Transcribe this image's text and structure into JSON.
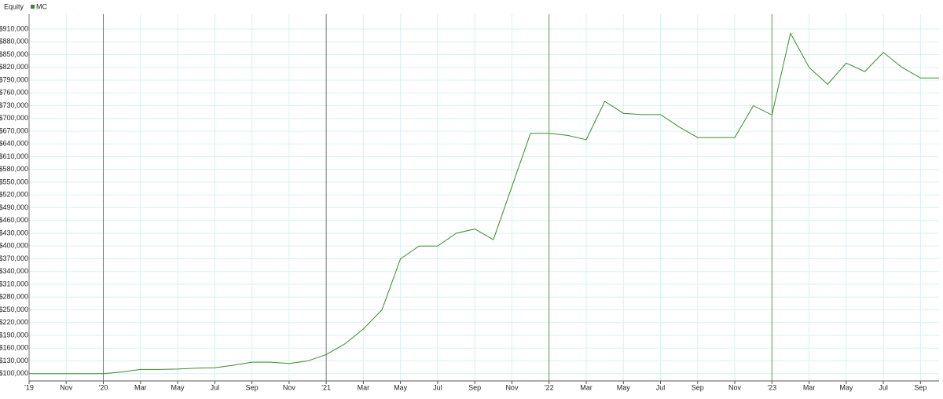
{
  "chart_data": {
    "type": "line",
    "title": "Equity",
    "x": [
      "2019-09",
      "2019-10",
      "2019-11",
      "2019-12",
      "2020-01",
      "2020-02",
      "2020-03",
      "2020-04",
      "2020-05",
      "2020-06",
      "2020-07",
      "2020-08",
      "2020-09",
      "2020-10",
      "2020-11",
      "2020-12",
      "2021-01",
      "2021-02",
      "2021-03",
      "2021-04",
      "2021-05",
      "2021-06",
      "2021-07",
      "2021-08",
      "2021-09",
      "2021-10",
      "2021-11",
      "2021-12",
      "2022-01",
      "2022-02",
      "2022-03",
      "2022-04",
      "2022-05",
      "2022-06",
      "2022-07",
      "2022-08",
      "2022-09",
      "2022-10",
      "2022-11",
      "2022-12",
      "2023-01",
      "2023-02",
      "2023-03",
      "2023-04",
      "2023-05",
      "2023-06",
      "2023-07",
      "2023-08",
      "2023-09",
      "2023-10"
    ],
    "series": [
      {
        "name": "MC",
        "color": "#3a8a2a",
        "values": [
          100000,
          100000,
          100000,
          100000,
          100000,
          104000,
          110000,
          110000,
          111000,
          113000,
          114000,
          120000,
          127000,
          127000,
          124000,
          130000,
          145000,
          170000,
          205000,
          250000,
          370000,
          400000,
          400000,
          430000,
          440000,
          415000,
          540000,
          665000,
          665000,
          660000,
          650000,
          740000,
          712000,
          709000,
          709000,
          680000,
          655000,
          655000,
          655000,
          730000,
          708000,
          900000,
          820000,
          780000,
          830000,
          810000,
          855000,
          820000,
          795000,
          795000
        ]
      }
    ],
    "xlim": [
      "2019-09",
      "2023-10"
    ],
    "xticks": [
      {
        "value": "2019-09",
        "label": "'19"
      },
      {
        "value": "2019-11",
        "label": "Nov"
      },
      {
        "value": "2020-01",
        "label": "'20"
      },
      {
        "value": "2020-03",
        "label": "Mar"
      },
      {
        "value": "2020-05",
        "label": "May"
      },
      {
        "value": "2020-07",
        "label": "Jul"
      },
      {
        "value": "2020-09",
        "label": "Sep"
      },
      {
        "value": "2020-11",
        "label": "Nov"
      },
      {
        "value": "2021-01",
        "label": "'21"
      },
      {
        "value": "2021-03",
        "label": "Mar"
      },
      {
        "value": "2021-05",
        "label": "May"
      },
      {
        "value": "2021-07",
        "label": "Jul"
      },
      {
        "value": "2021-09",
        "label": "Sep"
      },
      {
        "value": "2021-11",
        "label": "Nov"
      },
      {
        "value": "2022-01",
        "label": "'22"
      },
      {
        "value": "2022-03",
        "label": "Mar"
      },
      {
        "value": "2022-05",
        "label": "May"
      },
      {
        "value": "2022-07",
        "label": "Jul"
      },
      {
        "value": "2022-09",
        "label": "Sep"
      },
      {
        "value": "2022-11",
        "label": "Nov"
      },
      {
        "value": "2023-01",
        "label": "'23"
      },
      {
        "value": "2023-03",
        "label": "Mar"
      },
      {
        "value": "2023-05",
        "label": "May"
      },
      {
        "value": "2023-07",
        "label": "Jul"
      },
      {
        "value": "2023-09",
        "label": "Sep"
      }
    ],
    "ylim": [
      83000,
      945000
    ],
    "yticks": [
      {
        "value": 100000,
        "label": "$100,000"
      },
      {
        "value": 130000,
        "label": "$130,000"
      },
      {
        "value": 160000,
        "label": "$160,000"
      },
      {
        "value": 190000,
        "label": "$190,000"
      },
      {
        "value": 220000,
        "label": "$220,000"
      },
      {
        "value": 250000,
        "label": "$250,000"
      },
      {
        "value": 280000,
        "label": "$280,000"
      },
      {
        "value": 310000,
        "label": "$310,000"
      },
      {
        "value": 340000,
        "label": "$340,000"
      },
      {
        "value": 370000,
        "label": "$370,000"
      },
      {
        "value": 400000,
        "label": "$400,000"
      },
      {
        "value": 430000,
        "label": "$430,000"
      },
      {
        "value": 460000,
        "label": "$460,000"
      },
      {
        "value": 490000,
        "label": "$490,000"
      },
      {
        "value": 520000,
        "label": "$520,000"
      },
      {
        "value": 550000,
        "label": "$550,000"
      },
      {
        "value": 580000,
        "label": "$580,000"
      },
      {
        "value": 610000,
        "label": "$610,000"
      },
      {
        "value": 640000,
        "label": "$640,000"
      },
      {
        "value": 670000,
        "label": "$670,000"
      },
      {
        "value": 700000,
        "label": "$700,000"
      },
      {
        "value": 730000,
        "label": "$730,000"
      },
      {
        "value": 760000,
        "label": "$760,000"
      },
      {
        "value": 790000,
        "label": "$790,000"
      },
      {
        "value": 820000,
        "label": "$820,000"
      },
      {
        "value": 850000,
        "label": "$850,000"
      },
      {
        "value": 880000,
        "label": "$880,000"
      },
      {
        "value": 910000,
        "label": "$910,000"
      }
    ],
    "grid": true
  }
}
